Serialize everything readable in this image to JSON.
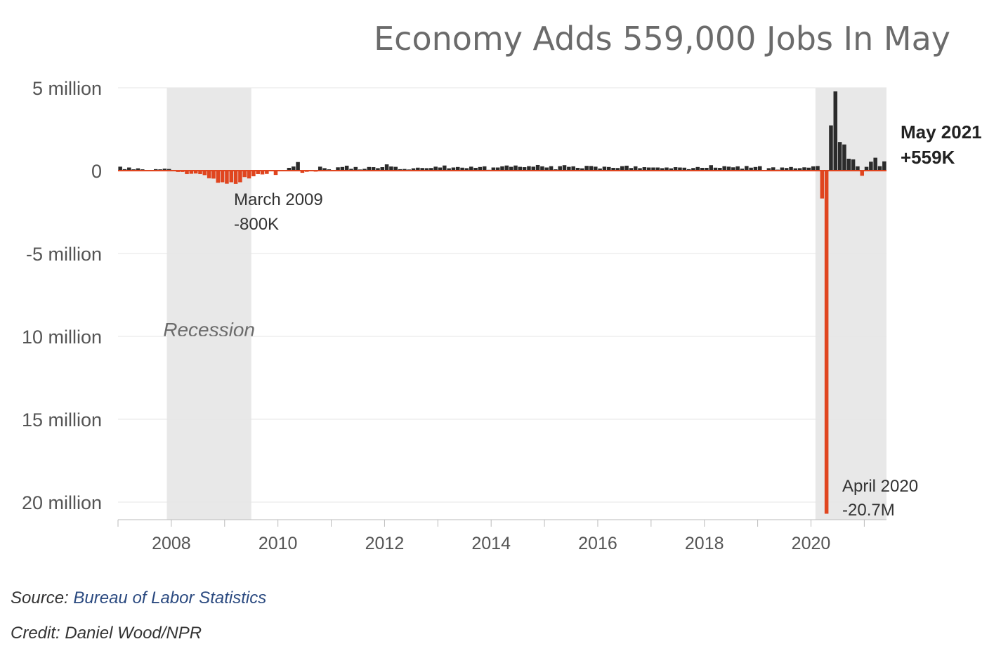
{
  "title": "Economy Adds 559,000 Jobs In May",
  "source_label": "Source:",
  "source_link": "Bureau of Labor Statistics",
  "credit": "Credit: Daniel Wood/NPR",
  "colors": {
    "positive": "#2b2b2b",
    "negative": "#e0451f",
    "recession": "#e8e8e8",
    "grid": "#e6e6e6",
    "baseline": "#e0451f"
  },
  "chart_data": {
    "type": "bar",
    "title": "Economy Adds 559,000 Jobs In May",
    "xlabel": "",
    "ylabel": "",
    "ylim": [
      -21,
      5
    ],
    "x_start": "2007-01",
    "x_end": "2021-05",
    "grid": true,
    "yticks": [
      {
        "value": 5,
        "label": "5 million"
      },
      {
        "value": 0,
        "label": "0"
      },
      {
        "value": -5,
        "label": "-5 million"
      },
      {
        "value": -10,
        "label": "10 million"
      },
      {
        "value": -15,
        "label": "15 million"
      },
      {
        "value": -20,
        "label": "20 million"
      }
    ],
    "xticks": [
      "2008",
      "2010",
      "2012",
      "2014",
      "2016",
      "2018",
      "2020"
    ],
    "recessions": [
      {
        "label": "Recession",
        "start": "2007-12",
        "end": "2009-06"
      },
      {
        "label": "",
        "start": "2020-02",
        "end": "2021-05"
      }
    ],
    "annotations": [
      {
        "text": [
          "March 2009",
          "-800K"
        ],
        "month": "2009-03",
        "style": "normal"
      },
      {
        "text": [
          "April 2020",
          "-20.7M"
        ],
        "month": "2020-04",
        "style": "normal"
      },
      {
        "text": [
          "May 2021",
          "+559K"
        ],
        "month": "2021-05",
        "style": "bold"
      }
    ],
    "series": [
      {
        "unit": "millions",
        "monthly_change": [
          0.24,
          0.09,
          0.19,
          0.08,
          0.14,
          0.08,
          -0.03,
          -0.02,
          0.09,
          0.08,
          0.12,
          0.1,
          0.02,
          -0.08,
          -0.08,
          -0.21,
          -0.19,
          -0.17,
          -0.21,
          -0.27,
          -0.46,
          -0.48,
          -0.73,
          -0.7,
          -0.79,
          -0.7,
          -0.8,
          -0.7,
          -0.39,
          -0.47,
          -0.34,
          -0.21,
          -0.23,
          -0.2,
          0.01,
          -0.26,
          -0.01,
          -0.04,
          0.17,
          0.25,
          0.52,
          -0.13,
          -0.07,
          -0.03,
          -0.06,
          0.24,
          0.15,
          0.08,
          0.03,
          0.2,
          0.22,
          0.3,
          0.11,
          0.22,
          0.07,
          0.11,
          0.22,
          0.21,
          0.15,
          0.21,
          0.38,
          0.25,
          0.23,
          0.09,
          0.1,
          0.07,
          0.14,
          0.18,
          0.16,
          0.15,
          0.16,
          0.24,
          0.19,
          0.31,
          0.14,
          0.19,
          0.22,
          0.18,
          0.15,
          0.24,
          0.17,
          0.22,
          0.26,
          0.05,
          0.19,
          0.19,
          0.26,
          0.31,
          0.23,
          0.31,
          0.23,
          0.21,
          0.27,
          0.24,
          0.34,
          0.26,
          0.19,
          0.27,
          0.08,
          0.27,
          0.33,
          0.23,
          0.26,
          0.17,
          0.14,
          0.29,
          0.28,
          0.24,
          0.13,
          0.24,
          0.22,
          0.17,
          0.16,
          0.27,
          0.3,
          0.16,
          0.26,
          0.15,
          0.21,
          0.19,
          0.19,
          0.19,
          0.15,
          0.19,
          0.14,
          0.21,
          0.19,
          0.18,
          0.09,
          0.16,
          0.22,
          0.17,
          0.17,
          0.33,
          0.18,
          0.17,
          0.27,
          0.24,
          0.2,
          0.26,
          0.12,
          0.28,
          0.18,
          0.22,
          0.27,
          0.02,
          0.15,
          0.2,
          0.06,
          0.19,
          0.16,
          0.22,
          0.14,
          0.15,
          0.2,
          0.18,
          0.26,
          0.28,
          -1.68,
          -20.7,
          2.73,
          4.78,
          1.73,
          1.58,
          0.72,
          0.68,
          0.26,
          -0.31,
          0.23,
          0.54,
          0.78,
          0.27,
          0.56
        ]
      }
    ]
  }
}
